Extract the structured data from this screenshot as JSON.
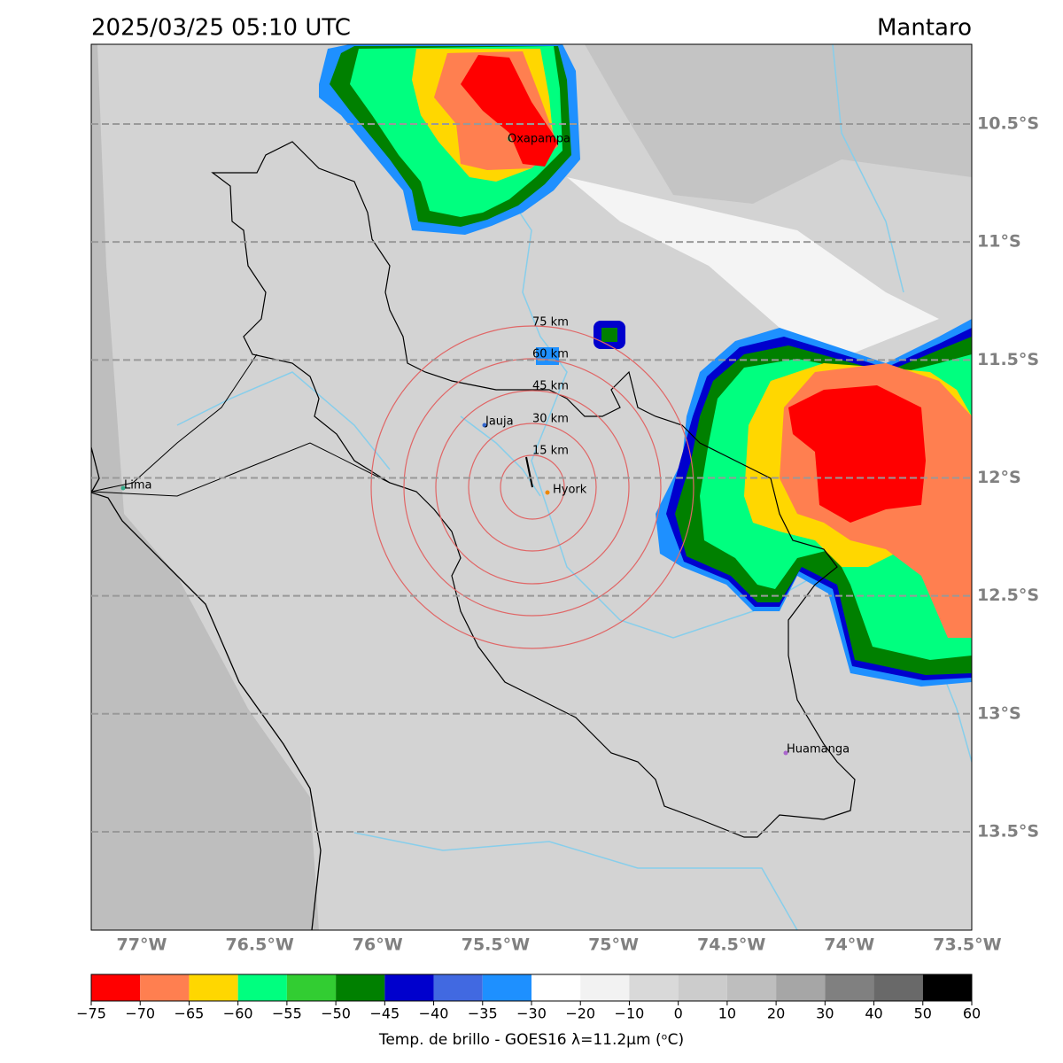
{
  "header": {
    "title": "2025/03/25 05:10 UTC",
    "region": "Mantaro"
  },
  "map": {
    "lonlim": [
      -77.214,
      -73.481
    ],
    "latlim": [
      -10.162,
      -13.917
    ],
    "lon_ticks": [
      {
        "value": -77,
        "label": "77°W"
      },
      {
        "value": -76.5,
        "label": "76.5°W"
      },
      {
        "value": -76,
        "label": "76°W"
      },
      {
        "value": -75.5,
        "label": "75.5°W"
      },
      {
        "value": -75,
        "label": "75°W"
      },
      {
        "value": -74.5,
        "label": "74.5°W"
      },
      {
        "value": -74,
        "label": "74°W"
      },
      {
        "value": -73.5,
        "label": "73.5°W"
      }
    ],
    "lat_ticks": [
      {
        "value": -10.5,
        "label": "10.5°S"
      },
      {
        "value": -11,
        "label": "11°S"
      },
      {
        "value": -11.5,
        "label": "11.5°S"
      },
      {
        "value": -12,
        "label": "12°S"
      },
      {
        "value": -12.5,
        "label": "12.5°S"
      },
      {
        "value": -13,
        "label": "13°S"
      },
      {
        "value": -13.5,
        "label": "13.5°S"
      }
    ],
    "places": [
      "Oxapampa",
      "Jauja",
      "Lima",
      "Hyork",
      "Huamanga"
    ],
    "rings": [
      "75 km",
      "60 km",
      "45 km",
      "30 km",
      "15 km"
    ]
  },
  "colorbar": {
    "ticks": [
      {
        "value": -75,
        "label": "−75"
      },
      {
        "value": -70,
        "label": "−70"
      },
      {
        "value": -65,
        "label": "−65"
      },
      {
        "value": -60,
        "label": "−60"
      },
      {
        "value": -55,
        "label": "−55"
      },
      {
        "value": -50,
        "label": "−50"
      },
      {
        "value": -45,
        "label": "−45"
      },
      {
        "value": -40,
        "label": "−40"
      },
      {
        "value": -35,
        "label": "−35"
      },
      {
        "value": -30,
        "label": "−30"
      },
      {
        "value": -20,
        "label": "−20"
      },
      {
        "value": -10,
        "label": "−10"
      },
      0,
      10,
      20,
      30,
      40,
      50,
      60
    ],
    "colors": [
      "#ff0000",
      "#ff7f50",
      "#ffd700",
      "#00ff7f",
      "#32cd32",
      "#008000",
      "#0000cd",
      "#4169e1",
      "#1e90ff",
      "#ffffff",
      "#f2f2f2",
      "#d9d9d9",
      "#cccccc",
      "#bebebe",
      "#a6a6a6",
      "#808080",
      "#696969",
      "#000000"
    ],
    "label": "Temp. de brillo - GOES16 λ=11.2μm (ᵒC)"
  }
}
